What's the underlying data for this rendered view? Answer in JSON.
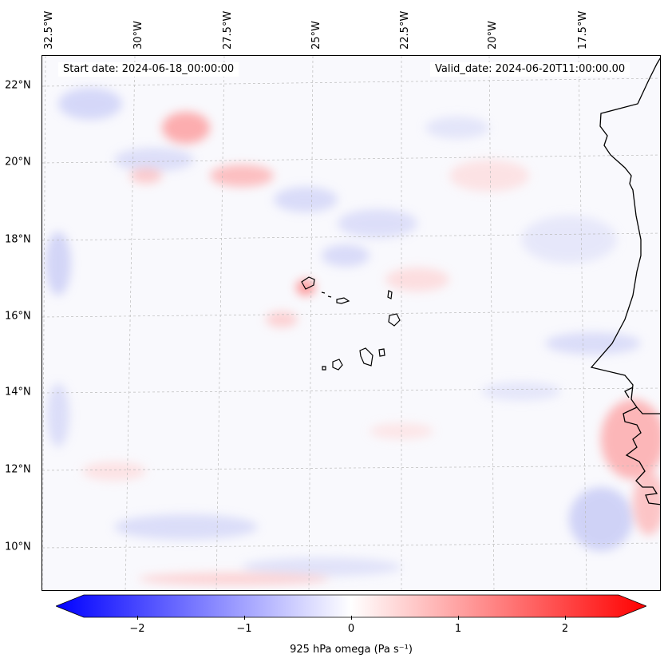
{
  "map": {
    "start_date": "Start date: 2024-06-18_00:00:00",
    "valid_date": "Valid_date: 2024-06-20T11:00:00.00",
    "longitude_labels": [
      "32.5°W",
      "30°W",
      "27.5°W",
      "25°W",
      "22.5°W",
      "20°W",
      "17.5°W"
    ],
    "latitude_labels": [
      "22°N",
      "20°N",
      "18°N",
      "16°N",
      "14°N",
      "12°N",
      "10°N"
    ]
  },
  "colorbar": {
    "label": "925 hPa omega (Pa s⁻¹)",
    "ticks": [
      "−2",
      "−1",
      "0",
      "1",
      "2"
    ],
    "tick_values": [
      -2,
      -1,
      0,
      1,
      2
    ],
    "range": [
      -2.5,
      2.5
    ],
    "negative_color": "#0000ff",
    "positive_color": "#ff0000",
    "neutral_color": "#ffffff"
  },
  "colors": {
    "coastline": "#000000",
    "gridline": "#bbbbbb"
  }
}
